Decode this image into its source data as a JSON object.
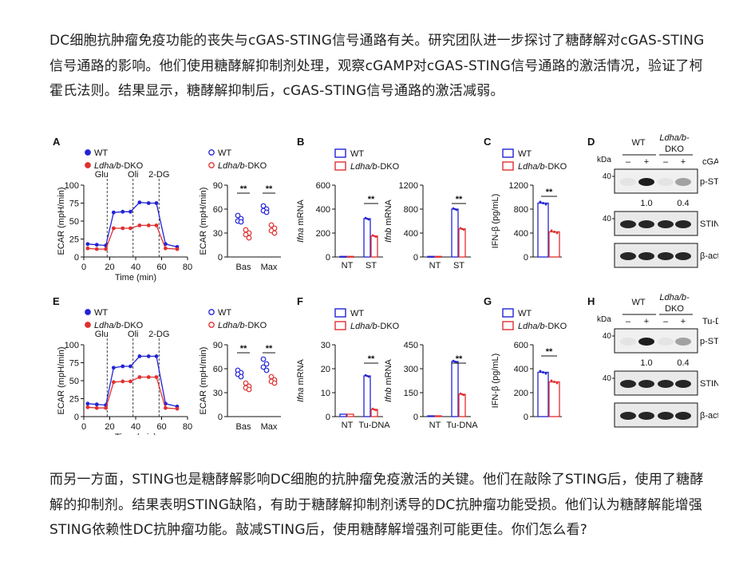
{
  "article": {
    "paragraph1": "DC细胞抗肿瘤免疫功能的丧失与cGAS-STING信号通路有关。研究团队进一步探讨了糖酵解对cGAS-STING信号通路的影响。他们使用糖酵解抑制剂处理，观察cGAMP对cGAS-STING信号通路的激活情况，验证了柯霍氏法则。结果显示，糖酵解抑制后，cGAS-STING信号通路的激活减弱。",
    "paragraph2": "而另一方面，STING也是糖酵解影响DC细胞的抗肿瘤免疫激活的关键。他们在敲除了STING后，使用了糖酵解的抑制剂。结果表明STING缺陷，有助于糖酵解抑制剂诱导的DC抗肿瘤功能受损。他们认为糖酵解能增强STING依赖性DC抗肿瘤功能。敲减STING后，使用糖酵解增强剂可能更佳。你们怎么看?"
  },
  "figure": {
    "colors": {
      "wt": "#2323d6",
      "ko": "#e03030"
    },
    "legend": {
      "wt": "WT",
      "ko_italic": "Ldha/b",
      "ko_suffix": "-DKO"
    },
    "panels": {
      "A": "A",
      "B": "B",
      "C": "C",
      "D": "D",
      "E": "E",
      "F": "F",
      "G": "G",
      "H": "H"
    },
    "seahorse": {
      "ylabel": "ECAR (mpH/min)",
      "xlabel": "Time (min)",
      "injections": [
        "Glu",
        "Oli",
        "2-DG"
      ],
      "yticks": [
        "0",
        "25",
        "50",
        "75",
        "100"
      ],
      "xticks": [
        "0",
        "20",
        "40",
        "60",
        "80"
      ]
    },
    "ecar_bar": {
      "ylabel": "ECAR (mpH/min)",
      "categories": [
        "Bas",
        "Max"
      ],
      "yticks": [
        "0",
        "30",
        "60",
        "90"
      ],
      "sig": "**"
    },
    "mrna": {
      "ifna_label": "Ifna",
      "ifnb_label": "Ifnb",
      "suffix": " mRNA",
      "row1_cats": [
        "NT",
        "ST"
      ],
      "row2_cats": [
        "NT",
        "Tu-DNA"
      ],
      "ifna_row1_ticks": [
        "0",
        "200",
        "400",
        "600"
      ],
      "ifnb_row1_ticks": [
        "0",
        "400",
        "800",
        "1200"
      ],
      "ifna_row2_ticks": [
        "0",
        "10",
        "20",
        "30"
      ],
      "ifnb_row2_ticks": [
        "0",
        "150",
        "300",
        "450"
      ],
      "sig": "**"
    },
    "ifn_protein": {
      "ylabel": "IFN-β (pg/mL)",
      "row1_ticks": [
        "0",
        "400",
        "800",
        "1200"
      ],
      "row2_ticks": [
        "0",
        "200",
        "400",
        "600"
      ],
      "sig": "**"
    },
    "western": {
      "group_wt": "WT",
      "group_ko": "Ldha/b-",
      "group_ko2": "DKO",
      "kda": "kDa",
      "mw": "40",
      "minus": "–",
      "plus": "+",
      "treat_row1": "cGAMP",
      "treat_row2": "Tu-DNA",
      "bands": [
        "p-STING",
        "STING",
        "β-actin"
      ],
      "quant": [
        "1.0",
        "0.4"
      ]
    }
  },
  "chart_data": [
    {
      "type": "line",
      "panel": "A",
      "xlabel": "Time (min)",
      "ylabel": "ECAR (mpH/min)",
      "xlim": [
        0,
        80
      ],
      "ylim": [
        0,
        100
      ],
      "x": [
        3,
        10,
        17,
        23,
        30,
        36,
        43,
        50,
        56,
        63,
        72
      ],
      "series": [
        {
          "name": "WT",
          "values": [
            18,
            17,
            16,
            62,
            63,
            63,
            76,
            75,
            75,
            18,
            14
          ]
        },
        {
          "name": "Ldha/b-DKO",
          "values": [
            12,
            11,
            11,
            40,
            40,
            40,
            44,
            44,
            44,
            12,
            11
          ]
        }
      ]
    },
    {
      "type": "scatter",
      "panel": "A",
      "categories": [
        "Bas",
        "Max"
      ],
      "ylim": [
        0,
        90
      ],
      "ylabel": "ECAR (mpH/min)",
      "series": [
        {
          "name": "WT",
          "values": [
            [
              52,
              48,
              45,
              44
            ],
            [
              64,
              60,
              58,
              56
            ]
          ]
        },
        {
          "name": "Ldha/b-DKO",
          "values": [
            [
              34,
              30,
              28,
              24
            ],
            [
              40,
              36,
              33,
              30
            ]
          ]
        }
      ]
    },
    {
      "type": "bar",
      "panel": "B",
      "ylabel": "Ifna mRNA",
      "categories": [
        "NT",
        "ST"
      ],
      "ylim": [
        0,
        600
      ],
      "series": [
        {
          "name": "WT",
          "values": [
            5,
            320
          ]
        },
        {
          "name": "Ldha/b-DKO",
          "values": [
            5,
            175
          ]
        }
      ]
    },
    {
      "type": "bar",
      "panel": "B",
      "ylabel": "Ifnb mRNA",
      "categories": [
        "NT",
        "ST"
      ],
      "ylim": [
        0,
        1200
      ],
      "series": [
        {
          "name": "WT",
          "values": [
            10,
            800
          ]
        },
        {
          "name": "Ldha/b-DKO",
          "values": [
            10,
            470
          ]
        }
      ]
    },
    {
      "type": "bar",
      "panel": "C",
      "ylabel": "IFN-β (pg/mL)",
      "ylim": [
        0,
        1200
      ],
      "series": [
        {
          "name": "WT",
          "values": [
            900
          ]
        },
        {
          "name": "Ldha/b-DKO",
          "values": [
            420
          ]
        }
      ]
    },
    {
      "type": "line",
      "panel": "E",
      "xlabel": "Time (min)",
      "ylabel": "ECAR (mpH/min)",
      "xlim": [
        0,
        80
      ],
      "ylim": [
        0,
        100
      ],
      "x": [
        3,
        10,
        17,
        23,
        30,
        36,
        43,
        50,
        56,
        63,
        72
      ],
      "series": [
        {
          "name": "WT",
          "values": [
            18,
            17,
            16,
            68,
            70,
            70,
            84,
            84,
            84,
            18,
            14
          ]
        },
        {
          "name": "Ldha/b-DKO",
          "values": [
            13,
            12,
            12,
            48,
            49,
            49,
            55,
            55,
            55,
            12,
            11
          ]
        }
      ]
    },
    {
      "type": "scatter",
      "panel": "E",
      "categories": [
        "Bas",
        "Max"
      ],
      "ylim": [
        0,
        90
      ],
      "ylabel": "ECAR (mpH/min)",
      "series": [
        {
          "name": "WT",
          "values": [
            [
              58,
              55,
              53,
              50
            ],
            [
              72,
              66,
              62,
              58
            ]
          ]
        },
        {
          "name": "Ldha/b-DKO",
          "values": [
            [
              42,
              38,
              36,
              34
            ],
            [
              50,
              46,
              44,
              42
            ]
          ]
        }
      ]
    },
    {
      "type": "bar",
      "panel": "F",
      "ylabel": "Ifna mRNA",
      "categories": [
        "NT",
        "Tu-DNA"
      ],
      "ylim": [
        0,
        30
      ],
      "series": [
        {
          "name": "WT",
          "values": [
            1,
            17
          ]
        },
        {
          "name": "Ldha/b-DKO",
          "values": [
            1,
            3
          ]
        }
      ]
    },
    {
      "type": "bar",
      "panel": "F",
      "ylabel": "Ifnb mRNA",
      "categories": [
        "NT",
        "Tu-DNA"
      ],
      "ylim": [
        0,
        450
      ],
      "series": [
        {
          "name": "WT",
          "values": [
            5,
            345
          ]
        },
        {
          "name": "Ldha/b-DKO",
          "values": [
            5,
            140
          ]
        }
      ]
    },
    {
      "type": "bar",
      "panel": "G",
      "ylabel": "IFN-β (pg/mL)",
      "ylim": [
        0,
        600
      ],
      "series": [
        {
          "name": "WT",
          "values": [
            370
          ]
        },
        {
          "name": "Ldha/b-DKO",
          "values": [
            290
          ]
        }
      ]
    }
  ]
}
